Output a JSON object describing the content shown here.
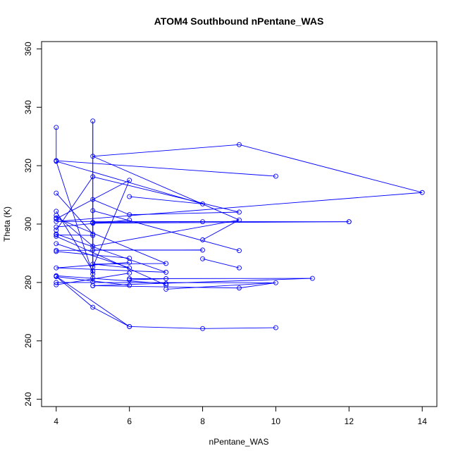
{
  "chart_data": {
    "type": "line",
    "title": "ATOM4 Southbound nPentane_WAS",
    "xlabel": "nPentane_WAS",
    "ylabel": "Theta (K)",
    "xlim": [
      3.6,
      14.4
    ],
    "ylim": [
      237.5,
      362.5
    ],
    "xticks": [
      4,
      6,
      8,
      10,
      12,
      14
    ],
    "yticks": [
      240,
      260,
      280,
      300,
      320,
      340,
      360
    ],
    "grid": false,
    "series_color": "#0000ff",
    "points": [
      {
        "x": 4,
        "y": 333.1
      },
      {
        "x": 4,
        "y": 321.7
      },
      {
        "x": 4,
        "y": 321.5
      },
      {
        "x": 5,
        "y": 282.9
      },
      {
        "x": 5,
        "y": 335.3
      },
      {
        "x": 5,
        "y": 280.2
      },
      {
        "x": 4,
        "y": 321.7
      },
      {
        "x": 10,
        "y": 316.4
      },
      {
        "x": 5,
        "y": 323.2
      },
      {
        "x": 9,
        "y": 327.2
      },
      {
        "x": 14,
        "y": 310.8
      },
      {
        "x": 4,
        "y": 300.9
      },
      {
        "x": 12,
        "y": 300.8
      },
      {
        "x": 5,
        "y": 300.6
      },
      {
        "x": 8,
        "y": 300.8
      },
      {
        "x": 5,
        "y": 300.3
      },
      {
        "x": 12,
        "y": 300.8
      },
      {
        "x": 4,
        "y": 301.8
      },
      {
        "x": 6,
        "y": 315.0
      },
      {
        "x": 5,
        "y": 285.3
      },
      {
        "x": 5,
        "y": 304.6
      },
      {
        "x": 9,
        "y": 290.9
      },
      {
        "x": 4,
        "y": 302.1
      },
      {
        "x": 7,
        "y": 286.5
      },
      {
        "x": 5,
        "y": 291.1
      },
      {
        "x": 8,
        "y": 291.1
      },
      {
        "x": 4,
        "y": 291.0
      },
      {
        "x": 4,
        "y": 310.6
      },
      {
        "x": 5,
        "y": 296.6
      },
      {
        "x": 4,
        "y": 296.3
      },
      {
        "x": 5,
        "y": 296.1
      },
      {
        "x": 4,
        "y": 297.9
      },
      {
        "x": 5,
        "y": 316.2
      },
      {
        "x": 9,
        "y": 304.1
      },
      {
        "x": 6,
        "y": 309.4
      },
      {
        "x": 8,
        "y": 306.9
      },
      {
        "x": 5,
        "y": 281.5
      },
      {
        "x": 5,
        "y": 308.4
      },
      {
        "x": 6,
        "y": 303.2
      },
      {
        "x": 4,
        "y": 296.6
      },
      {
        "x": 7,
        "y": 283.5
      },
      {
        "x": 5,
        "y": 278.9
      },
      {
        "x": 11,
        "y": 281.4
      },
      {
        "x": 4,
        "y": 280.0
      },
      {
        "x": 10,
        "y": 279.9
      },
      {
        "x": 5,
        "y": 278.9
      },
      {
        "x": 9,
        "y": 278.1
      },
      {
        "x": 7,
        "y": 277.7
      },
      {
        "x": 4,
        "y": 282.1
      },
      {
        "x": 6,
        "y": 264.9
      },
      {
        "x": 8,
        "y": 264.2
      },
      {
        "x": 10,
        "y": 264.5
      },
      {
        "x": 6,
        "y": 264.9
      },
      {
        "x": 5,
        "y": 271.5
      },
      {
        "x": 4,
        "y": 282.0
      },
      {
        "x": 6,
        "y": 279.0
      },
      {
        "x": 6,
        "y": 280.9
      },
      {
        "x": 7,
        "y": 281.3
      },
      {
        "x": 4,
        "y": 282.3
      },
      {
        "x": 7,
        "y": 279.6
      },
      {
        "x": 6,
        "y": 281.3
      },
      {
        "x": 4,
        "y": 279.2
      },
      {
        "x": 6,
        "y": 283.2
      },
      {
        "x": 4,
        "y": 285.0
      },
      {
        "x": 6,
        "y": 286.9
      },
      {
        "x": 4,
        "y": 290.6
      },
      {
        "x": 6,
        "y": 288.3
      },
      {
        "x": 4,
        "y": 293.3
      },
      {
        "x": 6,
        "y": 285.0
      },
      {
        "x": 5,
        "y": 286.3
      },
      {
        "x": 8,
        "y": 288.1
      },
      {
        "x": 9,
        "y": 285.0
      },
      {
        "x": 5,
        "y": 292.4
      },
      {
        "x": 4,
        "y": 303.0
      },
      {
        "x": 9,
        "y": 301.4
      },
      {
        "x": 8,
        "y": 294.6
      },
      {
        "x": 4,
        "y": 304.4
      },
      {
        "x": 5,
        "y": 283.9
      },
      {
        "x": 4,
        "y": 299.0
      },
      {
        "x": 6,
        "y": 301.4
      },
      {
        "x": 4,
        "y": 295.8
      },
      {
        "x": 7,
        "y": 279.1
      }
    ],
    "segments": [
      [
        [
          4,
          333.1
        ],
        [
          4,
          321.7
        ]
      ],
      [
        [
          4,
          321.5
        ],
        [
          5,
          282.9
        ]
      ],
      [
        [
          5,
          282.9
        ],
        [
          5,
          335.3
        ]
      ],
      [
        [
          5,
          335.3
        ],
        [
          5,
          280.2
        ]
      ],
      [
        [
          4,
          321.7
        ],
        [
          10,
          316.4
        ]
      ],
      [
        [
          5,
          323.2
        ],
        [
          9,
          327.2
        ]
      ],
      [
        [
          9,
          327.2
        ],
        [
          14,
          310.8
        ]
      ],
      [
        [
          14,
          310.8
        ],
        [
          4,
          300.9
        ]
      ],
      [
        [
          4,
          300.9
        ],
        [
          12,
          300.8
        ]
      ],
      [
        [
          5,
          300.6
        ],
        [
          8,
          300.8
        ]
      ],
      [
        [
          5,
          300.3
        ],
        [
          12,
          300.8
        ]
      ],
      [
        [
          4,
          301.8
        ],
        [
          6,
          315.0
        ]
      ],
      [
        [
          6,
          315.0
        ],
        [
          5,
          285.3
        ]
      ],
      [
        [
          5,
          304.6
        ],
        [
          9,
          290.9
        ]
      ],
      [
        [
          4,
          302.1
        ],
        [
          7,
          286.5
        ]
      ],
      [
        [
          5,
          291.1
        ],
        [
          8,
          291.1
        ]
      ],
      [
        [
          4,
          291.0
        ],
        [
          8,
          291.1
        ]
      ],
      [
        [
          4,
          310.6
        ],
        [
          5,
          296.6
        ]
      ],
      [
        [
          4,
          296.3
        ],
        [
          5,
          296.1
        ]
      ],
      [
        [
          4,
          297.9
        ],
        [
          5,
          316.2
        ]
      ],
      [
        [
          5,
          316.2
        ],
        [
          9,
          304.1
        ]
      ],
      [
        [
          6,
          309.4
        ],
        [
          8,
          306.9
        ]
      ],
      [
        [
          4,
          321.5
        ],
        [
          8,
          306.9
        ]
      ],
      [
        [
          5,
          323.2
        ],
        [
          9,
          301.4
        ]
      ],
      [
        [
          5,
          281.5
        ],
        [
          5,
          308.4
        ]
      ],
      [
        [
          5,
          308.4
        ],
        [
          6,
          303.2
        ]
      ],
      [
        [
          4,
          296.6
        ],
        [
          7,
          283.5
        ]
      ],
      [
        [
          5,
          278.9
        ],
        [
          11,
          281.4
        ]
      ],
      [
        [
          4,
          280.0
        ],
        [
          10,
          279.9
        ]
      ],
      [
        [
          5,
          278.9
        ],
        [
          9,
          278.1
        ]
      ],
      [
        [
          9,
          278.1
        ],
        [
          10,
          279.9
        ]
      ],
      [
        [
          7,
          277.7
        ],
        [
          10,
          279.9
        ]
      ],
      [
        [
          4,
          282.1
        ],
        [
          6,
          264.9
        ]
      ],
      [
        [
          6,
          264.9
        ],
        [
          8,
          264.2
        ]
      ],
      [
        [
          8,
          264.2
        ],
        [
          10,
          264.5
        ]
      ],
      [
        [
          4,
          282.0
        ],
        [
          5,
          271.5
        ]
      ],
      [
        [
          5,
          271.5
        ],
        [
          6,
          264.9
        ]
      ],
      [
        [
          4,
          282.0
        ],
        [
          6,
          279.0
        ]
      ],
      [
        [
          6,
          280.9
        ],
        [
          7,
          281.3
        ]
      ],
      [
        [
          4,
          282.3
        ],
        [
          7,
          279.6
        ]
      ],
      [
        [
          6,
          281.3
        ],
        [
          11,
          281.4
        ]
      ],
      [
        [
          4,
          279.2
        ],
        [
          6,
          283.2
        ]
      ],
      [
        [
          4,
          285.0
        ],
        [
          6,
          286.9
        ]
      ],
      [
        [
          4,
          290.6
        ],
        [
          6,
          288.3
        ]
      ],
      [
        [
          4,
          293.3
        ],
        [
          6,
          285.0
        ]
      ],
      [
        [
          5,
          286.3
        ],
        [
          6,
          285.0
        ]
      ],
      [
        [
          8,
          288.1
        ],
        [
          9,
          285.0
        ]
      ],
      [
        [
          5,
          292.4
        ],
        [
          4,
          303.0
        ]
      ],
      [
        [
          5,
          292.4
        ],
        [
          9,
          301.4
        ]
      ],
      [
        [
          8,
          294.6
        ],
        [
          9,
          301.4
        ]
      ],
      [
        [
          4,
          304.4
        ],
        [
          5,
          283.9
        ]
      ],
      [
        [
          4,
          299.0
        ],
        [
          6,
          301.4
        ]
      ],
      [
        [
          4,
          295.8
        ],
        [
          7,
          279.1
        ]
      ],
      [
        [
          5,
          286.3
        ],
        [
          7,
          286.5
        ]
      ],
      [
        [
          4,
          285.0
        ],
        [
          7,
          283.5
        ]
      ],
      [
        [
          6,
          303.2
        ],
        [
          9,
          304.1
        ]
      ]
    ]
  }
}
